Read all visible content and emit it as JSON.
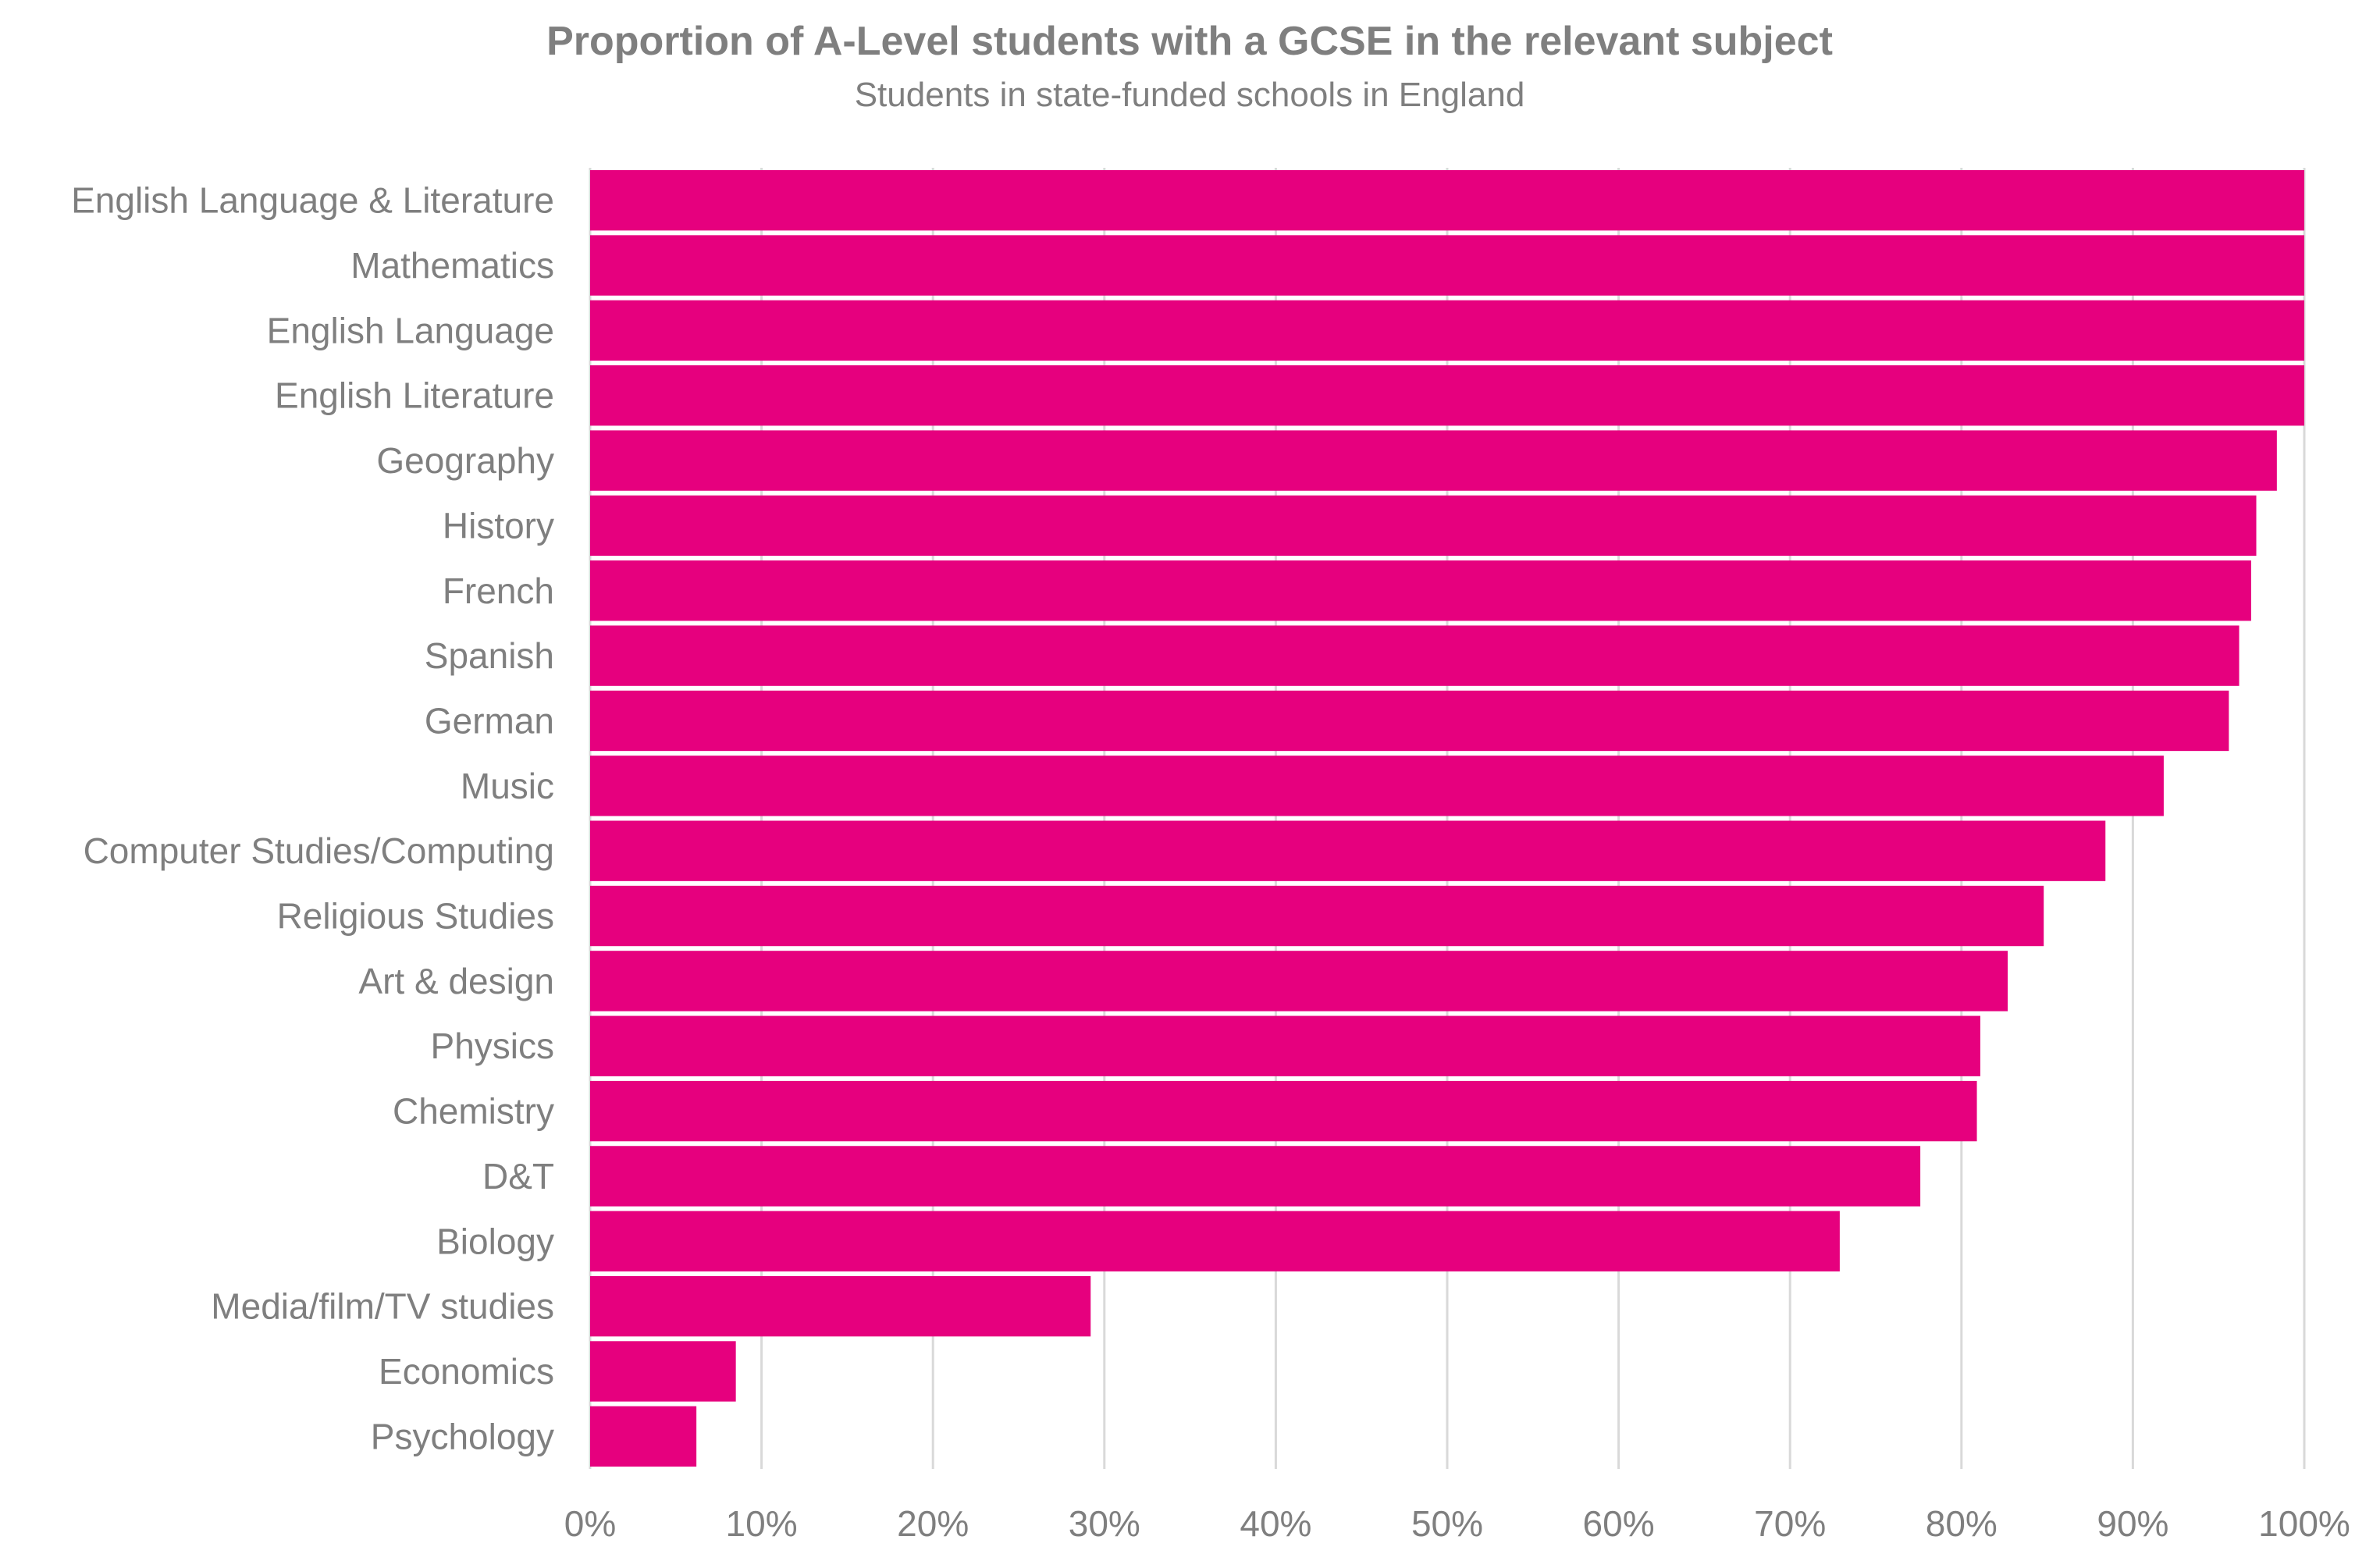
{
  "chart_data": {
    "type": "bar",
    "orientation": "horizontal",
    "title": "Proportion of A-Level students with a GCSE in the relevant subject",
    "subtitle": "Students in state-funded schools in England",
    "xlabel": "",
    "ylabel": "",
    "xlim": [
      0,
      100
    ],
    "x_ticks": [
      "0%",
      "10%",
      "20%",
      "30%",
      "40%",
      "50%",
      "60%",
      "70%",
      "80%",
      "90%",
      "100%"
    ],
    "grid": true,
    "legend": "none",
    "bar_color": "#e6007e",
    "categories": [
      "English Language & Literature",
      "Mathematics",
      "English Language",
      "English Literature",
      "Geography",
      "History",
      "French",
      "Spanish",
      "German",
      "Music",
      "Computer Studies/Computing",
      "Religious Studies",
      "Art & design",
      "Physics",
      "Chemistry",
      "D&T",
      "Biology",
      "Media/film/TV studies",
      "Economics",
      "Psychology"
    ],
    "values": [
      100,
      100,
      100,
      100,
      98.4,
      97.2,
      96.9,
      96.2,
      95.6,
      91.8,
      88.4,
      84.8,
      82.7,
      81.1,
      80.9,
      77.6,
      72.9,
      29.2,
      8.5,
      6.2
    ]
  }
}
